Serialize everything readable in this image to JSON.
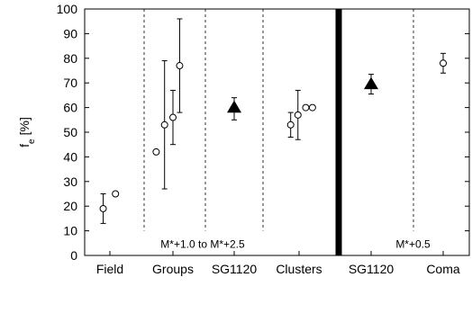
{
  "chart_data": {
    "type": "scatter",
    "ylabel": "f",
    "ylabel_sub": "e",
    "ylabel_unit": "[%]",
    "ylim": [
      0,
      100
    ],
    "yticks": [
      0,
      10,
      20,
      30,
      40,
      50,
      60,
      70,
      80,
      90,
      100
    ],
    "categories": [
      "Field",
      "Groups",
      "SG1120",
      "Clusters",
      "SG1120",
      "Coma"
    ],
    "annotations": [
      "M*+1.0 to M*+2.5",
      "M*+0.5"
    ],
    "points": [
      {
        "category": "Field",
        "offset": -0.12,
        "y": 19,
        "err_low": 13,
        "err_high": 25,
        "marker": "circle"
      },
      {
        "category": "Field",
        "offset": 0.1,
        "y": 25,
        "marker": "circle"
      },
      {
        "category": "Groups",
        "offset": -0.3,
        "y": 42,
        "marker": "circle"
      },
      {
        "category": "Groups",
        "offset": -0.15,
        "y": 53,
        "err_low": 27,
        "err_high": 79,
        "marker": "circle"
      },
      {
        "category": "Groups",
        "offset": 0.0,
        "y": 56,
        "err_low": 45,
        "err_high": 67,
        "marker": "circle"
      },
      {
        "category": "Groups",
        "offset": 0.12,
        "y": 77,
        "err_low": 58,
        "err_high": 96,
        "marker": "circle"
      },
      {
        "category": "SG1120",
        "offset": 0.0,
        "y": 60,
        "err_low": 55,
        "err_high": 64,
        "marker": "triangle"
      },
      {
        "category": "Clusters",
        "offset": -0.15,
        "y": 53,
        "err_low": 48,
        "err_high": 58,
        "marker": "circle"
      },
      {
        "category": "Clusters",
        "offset": -0.02,
        "y": 57,
        "err_low": 47,
        "err_high": 67,
        "marker": "circle"
      },
      {
        "category": "Clusters",
        "offset": 0.12,
        "y": 60,
        "marker": "circle"
      },
      {
        "category": "Clusters",
        "offset": 0.24,
        "y": 60,
        "marker": "circle"
      },
      {
        "category": "SG1120#2",
        "offset": 0.0,
        "y": 69.5,
        "err_low": 65.5,
        "err_high": 73.5,
        "marker": "triangle"
      },
      {
        "category": "Coma",
        "offset": 0.0,
        "y": 78,
        "err_low": 74,
        "err_high": 82,
        "marker": "circle"
      }
    ],
    "separators": [
      {
        "between": [
          0,
          1
        ],
        "style": "dashed"
      },
      {
        "between": [
          1,
          2
        ],
        "style": "dashed"
      },
      {
        "between": [
          2,
          3
        ],
        "style": "dashed"
      },
      {
        "between": [
          3,
          4
        ],
        "style": "thick"
      },
      {
        "between": [
          4,
          5
        ],
        "style": "dashed"
      }
    ],
    "grid": false
  }
}
